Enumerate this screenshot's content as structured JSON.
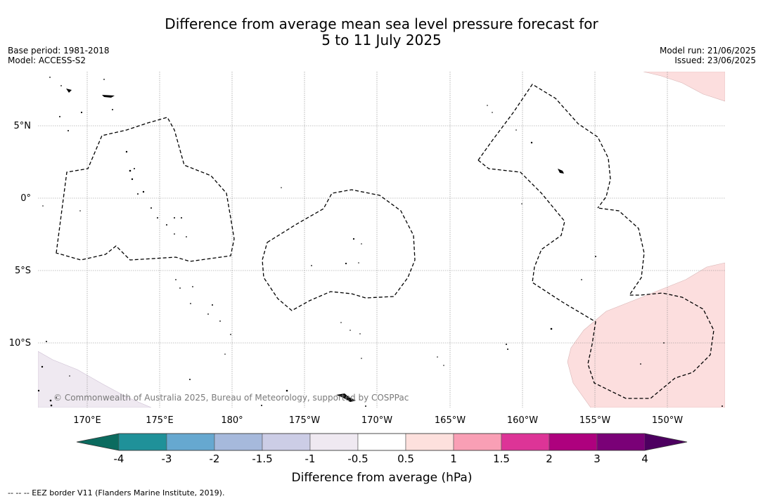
{
  "title": {
    "line1": "Difference from average mean sea level pressure forecast for",
    "line2": "5 to 11 July 2025"
  },
  "meta_left": {
    "base_period": "Base period: 1981-2018",
    "model": "Model: ACCESS-S2"
  },
  "meta_right": {
    "model_run": "Model run: 21/06/2025",
    "issued": "Issued: 23/06/2025"
  },
  "map": {
    "lon_labels": [
      "170°E",
      "175°E",
      "180°",
      "175°W",
      "170°W",
      "165°W",
      "160°W",
      "155°W",
      "150°W"
    ],
    "lat_labels": [
      "5°N",
      "0°",
      "5°S",
      "10°S"
    ],
    "copyright": "© Commonwealth of Australia 2025, Bureau of Meteorology, supported by COSPPac",
    "shading": {
      "positive_color": "#fcdede",
      "negative_color": "#efe9f1",
      "positive_range": "0.5 to 1",
      "negative_range": "-1 to -0.5"
    }
  },
  "colorbar": {
    "tick_labels": [
      "-4",
      "-3",
      "-2",
      "-1.5",
      "-1",
      "-0.5",
      "0.5",
      "1",
      "1.5",
      "2",
      "3",
      "4"
    ],
    "under_color": "#0b6b5f",
    "over_color": "#4d0060",
    "bin_colors": [
      "#1f9199",
      "#66a8d0",
      "#a6b9dc",
      "#cccde6",
      "#efe9f1",
      "#ffffff",
      "#fde0dd",
      "#f99fb5",
      "#dd3497",
      "#ae017e",
      "#7a0177"
    ],
    "label": "Difference from average (hPa)"
  },
  "footnote": "--  --  -- EEZ border V11 (Flanders Marine Institute, 2019)."
}
